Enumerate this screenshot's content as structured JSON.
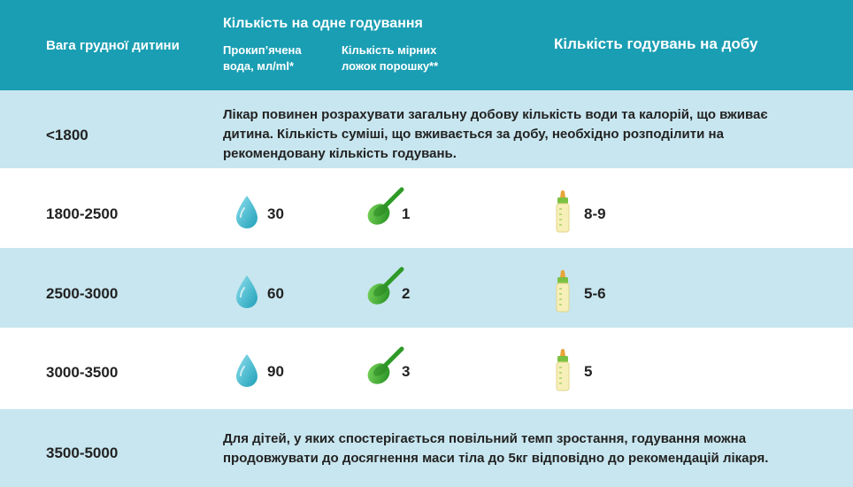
{
  "header": {
    "weight_label": "Вага грудної дитини",
    "per_feeding_label": "Кількість на одне годування",
    "water_label": "Прокип’ячена вода, мл/ml*",
    "spoons_label": "Кількість мірних ложок порошку**",
    "feedings_label": "Кількість годувань на добу"
  },
  "rows": [
    {
      "weight": "<1800",
      "note": "Лікар повинен розрахувати загальну добову кількість води та калорій, що вживає дитина. Кількість суміші, що вживається за добу, необхідно розподілити на рекомендовану кількість годувань."
    },
    {
      "weight": "1800-2500",
      "water": "30",
      "spoons": "1",
      "feedings": "8-9"
    },
    {
      "weight": "2500-3000",
      "water": "60",
      "spoons": "2",
      "feedings": "5-6"
    },
    {
      "weight": "3000-3500",
      "water": "90",
      "spoons": "3",
      "feedings": "5"
    },
    {
      "weight": "3500-5000",
      "note": "Для дітей, у яких спостерігається повільний темп зростання, годування можна продовжувати до досягнення маси тіла до 5кг відповідно до рекомендацій лікаря."
    }
  ],
  "icons": {
    "water": "water-drop-icon",
    "spoon": "measuring-scoop-icon",
    "bottle": "baby-bottle-icon"
  },
  "colors": {
    "header_bg": "#1a9eb3",
    "row_blue": "#c8e6ef",
    "row_white": "#ffffff",
    "drop": "#3bb3c9",
    "scoop": "#3aa52c",
    "bottle_cap": "#7cc242",
    "bottle_teat": "#e8a53a",
    "bottle_body": "#f7efb8"
  }
}
